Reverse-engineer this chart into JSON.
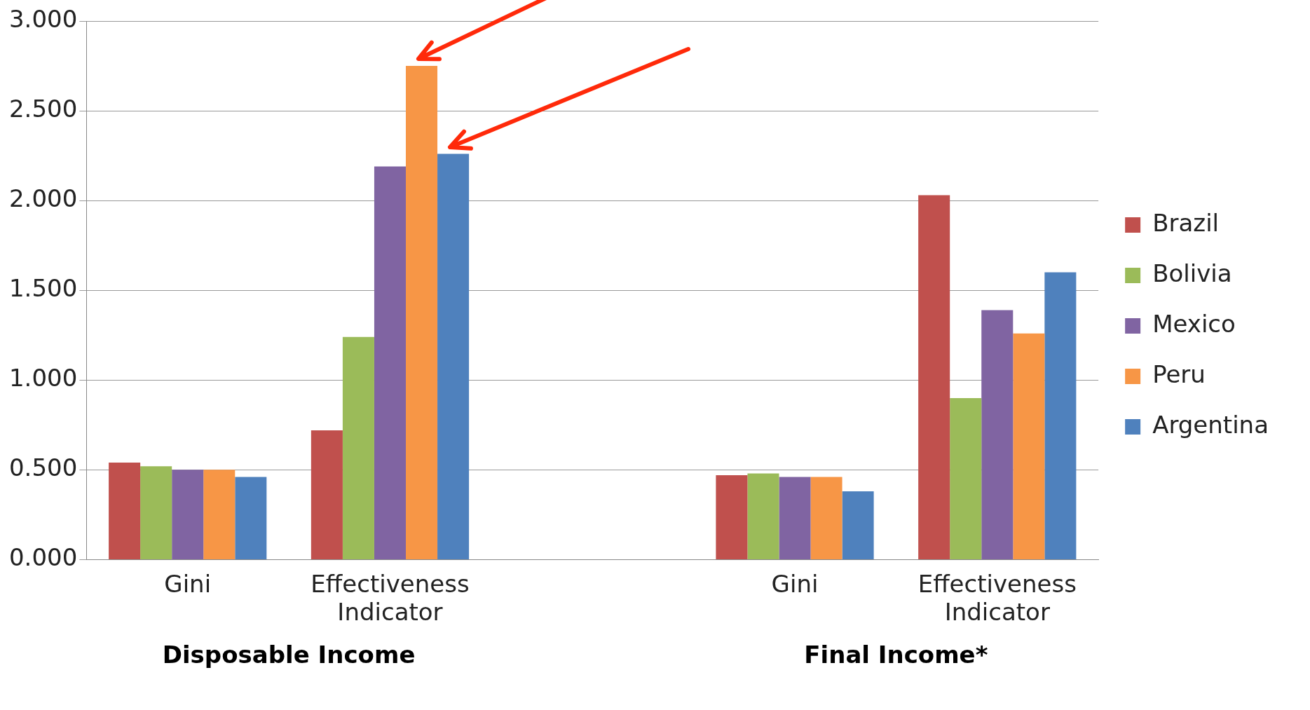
{
  "chart_data": {
    "type": "bar",
    "categories": [
      "Gini",
      "Effectiveness Indicator",
      null,
      "Gini",
      "Effectiveness Indicator"
    ],
    "series": [
      {
        "name": "Brazil",
        "color": "#c0504d",
        "values": [
          0.54,
          0.72,
          null,
          0.47,
          2.03
        ]
      },
      {
        "name": "Bolivia",
        "color": "#9bbb59",
        "values": [
          0.52,
          1.24,
          null,
          0.48,
          0.9
        ]
      },
      {
        "name": "Mexico",
        "color": "#8064a2",
        "values": [
          0.5,
          2.19,
          null,
          0.46,
          1.39
        ]
      },
      {
        "name": "Peru",
        "color": "#f79646",
        "values": [
          0.5,
          2.75,
          null,
          0.46,
          1.26
        ]
      },
      {
        "name": "Argentina",
        "color": "#4f81bd",
        "values": [
          0.46,
          2.26,
          null,
          0.38,
          1.6
        ]
      }
    ],
    "ylim": [
      0,
      3
    ],
    "yticks": [
      {
        "value": 0,
        "label": "0.000"
      },
      {
        "value": 0.5,
        "label": "0.500"
      },
      {
        "value": 1,
        "label": "1.000"
      },
      {
        "value": 1.5,
        "label": "1.500"
      },
      {
        "value": 2,
        "label": "2.000"
      },
      {
        "value": 2.5,
        "label": "2.500"
      },
      {
        "value": 3,
        "label": "3.000"
      }
    ],
    "grid": "y",
    "legend": "right",
    "annotations": [
      "Disposable Income",
      "Final Income*"
    ]
  }
}
